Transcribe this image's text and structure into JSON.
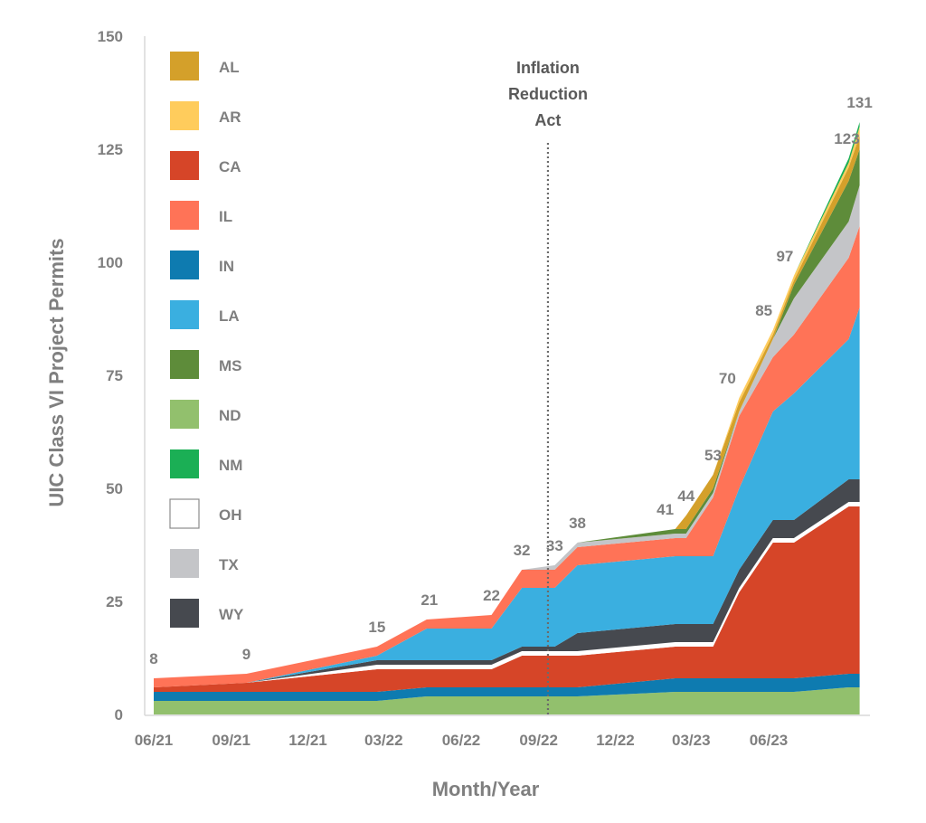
{
  "chart_data": {
    "type": "area",
    "stacked": true,
    "title": "",
    "xlabel": "Month/Year",
    "ylabel": "UIC Class VI Project Permits",
    "ylim": [
      0,
      150
    ],
    "yticks": [
      "0",
      "25",
      "50",
      "75",
      "100",
      "125",
      "150"
    ],
    "xlim": [
      "2021-06-01",
      "2023-09-25"
    ],
    "xticks": [
      {
        "date": "2021-06-01",
        "label": "06/21"
      },
      {
        "date": "2021-09-01",
        "label": "09/21"
      },
      {
        "date": "2021-12-01",
        "label": "12/21"
      },
      {
        "date": "2022-03-01",
        "label": "03/22"
      },
      {
        "date": "2022-06-01",
        "label": "06/22"
      },
      {
        "date": "2022-09-01",
        "label": "09/22"
      },
      {
        "date": "2022-12-01",
        "label": "12/22"
      },
      {
        "date": "2023-03-01",
        "label": "03/23"
      },
      {
        "date": "2023-06-01",
        "label": "06/23"
      }
    ],
    "grid": false,
    "legend_position": "top-left",
    "x": [
      "2021-06-01",
      "2021-09-19",
      "2022-02-21",
      "2022-04-21",
      "2022-07-07",
      "2022-08-12",
      "2022-09-20",
      "2022-10-17",
      "2023-02-10",
      "2023-02-23",
      "2023-03-27",
      "2023-04-27",
      "2023-06-06",
      "2023-07-01",
      "2023-09-04",
      "2023-09-17"
    ],
    "series": [
      {
        "name": "ND",
        "color": "#92C06D",
        "values": [
          3,
          3,
          3,
          4,
          4,
          4,
          4,
          4,
          5,
          5,
          5,
          5,
          5,
          5,
          6,
          6
        ]
      },
      {
        "name": "IN",
        "color": "#0E7BB0",
        "values": [
          2,
          2,
          2,
          2,
          2,
          2,
          2,
          2,
          3,
          3,
          3,
          3,
          3,
          3,
          3,
          3
        ]
      },
      {
        "name": "CA",
        "color": "#D64528",
        "values": [
          1,
          2,
          5,
          4,
          4,
          7,
          7,
          7,
          7,
          7,
          7,
          19,
          30,
          30,
          37,
          37
        ]
      },
      {
        "name": "OH",
        "color": "#FFFFFF",
        "values": [
          0,
          0,
          1,
          1,
          1,
          1,
          1,
          1,
          1,
          1,
          1,
          1,
          1,
          1,
          1,
          1
        ]
      },
      {
        "name": "WY",
        "color": "#46494F",
        "values": [
          0,
          0,
          1,
          1,
          1,
          1,
          1,
          4,
          4,
          4,
          4,
          4,
          4,
          4,
          5,
          5
        ]
      },
      {
        "name": "LA",
        "color": "#3AAFE0",
        "values": [
          0,
          0,
          1,
          7,
          7,
          13,
          13,
          15,
          15,
          15,
          15,
          18,
          24,
          28,
          31,
          38
        ]
      },
      {
        "name": "IL",
        "color": "#FF7357",
        "values": [
          2,
          2,
          2,
          2,
          3,
          4,
          4,
          4,
          4,
          4,
          13,
          16,
          12,
          13,
          18,
          18
        ]
      },
      {
        "name": "TX",
        "color": "#C4C5C8",
        "values": [
          0,
          0,
          0,
          0,
          0,
          0,
          1,
          1,
          1,
          1,
          1,
          1,
          4,
          8,
          8,
          9
        ]
      },
      {
        "name": "MS",
        "color": "#5E8C3A",
        "values": [
          0,
          0,
          0,
          0,
          0,
          0,
          0,
          0,
          1,
          1,
          1,
          0,
          0,
          3,
          9,
          8
        ]
      },
      {
        "name": "AL",
        "color": "#D4A02A",
        "values": [
          0,
          0,
          0,
          0,
          0,
          0,
          0,
          0,
          0,
          3,
          3,
          2,
          1,
          1,
          3,
          3
        ]
      },
      {
        "name": "AR",
        "color": "#FFCC5C",
        "values": [
          0,
          0,
          0,
          0,
          0,
          0,
          0,
          0,
          0,
          0,
          0,
          1,
          1,
          1,
          1,
          2
        ]
      },
      {
        "name": "NM",
        "color": "#1BAF55",
        "values": [
          0,
          0,
          0,
          0,
          0,
          0,
          0,
          0,
          0,
          0,
          0,
          0,
          0,
          0,
          1,
          1
        ]
      }
    ],
    "legend_order": [
      "AL",
      "AR",
      "CA",
      "IL",
      "IN",
      "LA",
      "MS",
      "ND",
      "NM",
      "OH",
      "TX",
      "WY"
    ],
    "total_labels": [
      "8",
      "9",
      "15",
      "21",
      "22",
      "32",
      "33",
      "38",
      "41",
      "44",
      "53",
      "70",
      "85",
      "97",
      "123",
      "131"
    ],
    "annotation": {
      "date": "2022-09-12",
      "lines": [
        "Inflation",
        "Reduction",
        "Act"
      ],
      "style": "dotted-vertical-line"
    }
  }
}
